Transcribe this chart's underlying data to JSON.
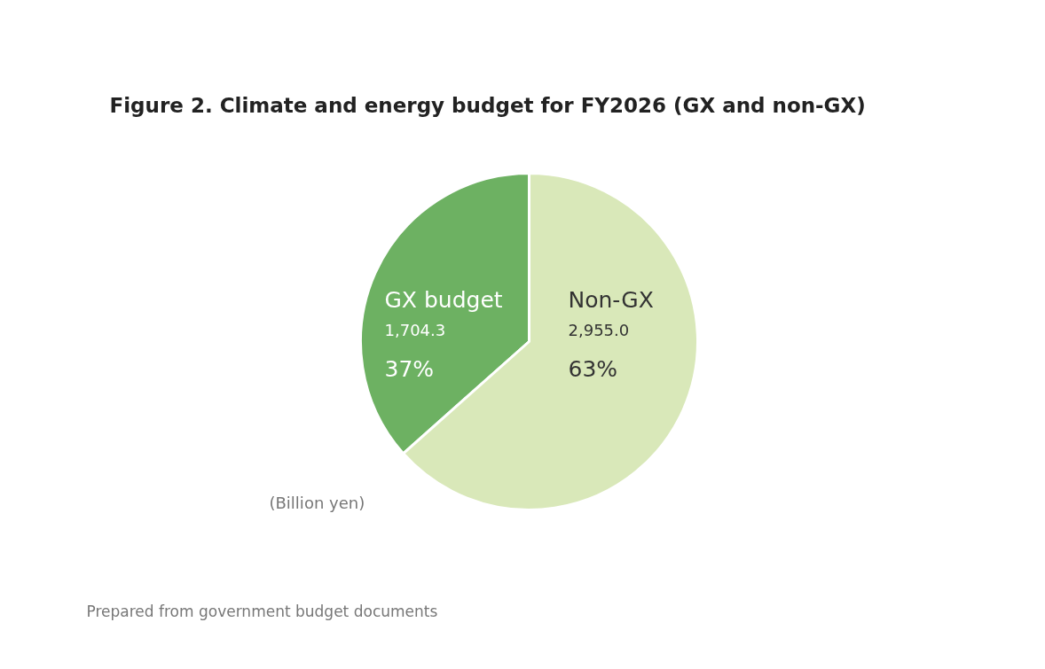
{
  "chart_data": {
    "type": "pie",
    "title": "Figure 2. Climate and energy budget for FY2026 (GX and non-GX)",
    "categories": [
      "GX budget",
      "Non-GX"
    ],
    "values": [
      1704.3,
      2955.0
    ],
    "colors": [
      "#6db162",
      "#d9e8b9"
    ],
    "value_labels": [
      "1,704.3",
      "2,955.0"
    ],
    "annotations": [
      "37%",
      "63%",
      "(Billion yen)",
      "Prepared from government budget documents"
    ]
  }
}
